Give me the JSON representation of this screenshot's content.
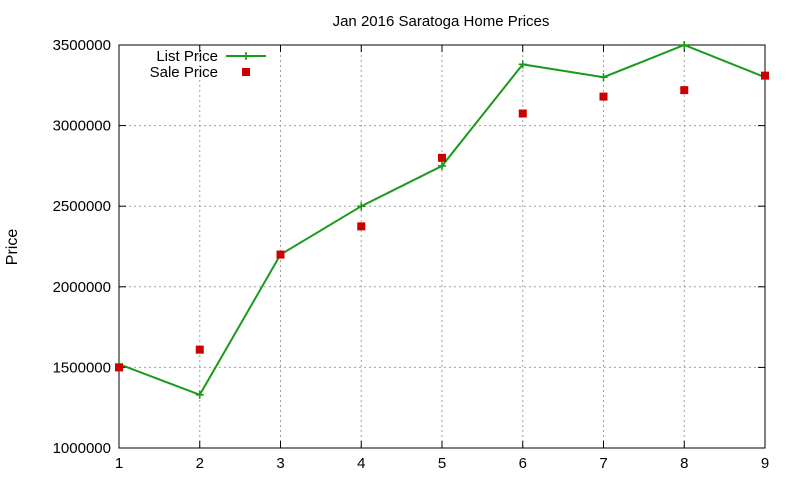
{
  "chart_data": {
    "type": "line",
    "title": "Jan 2016 Saratoga Home Prices",
    "xlabel": "",
    "ylabel": "Price",
    "xlim": [
      1,
      9
    ],
    "ylim": [
      1000000,
      3500000
    ],
    "x_ticks": [
      1,
      2,
      3,
      4,
      5,
      6,
      7,
      8,
      9
    ],
    "y_ticks": [
      1000000,
      1500000,
      2000000,
      2500000,
      3000000,
      3500000
    ],
    "grid": true,
    "legend_position": "top-left",
    "series": [
      {
        "name": "List Price",
        "style": "line-with-plus-markers",
        "color": "#1a9a1a",
        "x": [
          1,
          2,
          3,
          4,
          5,
          6,
          7,
          8,
          9
        ],
        "y": [
          1520000,
          1330000,
          2200000,
          2500000,
          2750000,
          3380000,
          3300000,
          3500000,
          3300000
        ]
      },
      {
        "name": "Sale Price",
        "style": "square-markers",
        "color": "#cc0000",
        "x": [
          1,
          2,
          3,
          4,
          5,
          6,
          7,
          8,
          9
        ],
        "y": [
          1500000,
          1610000,
          2200000,
          2375000,
          2800000,
          3075000,
          3180000,
          3220000,
          3310000
        ]
      }
    ]
  }
}
